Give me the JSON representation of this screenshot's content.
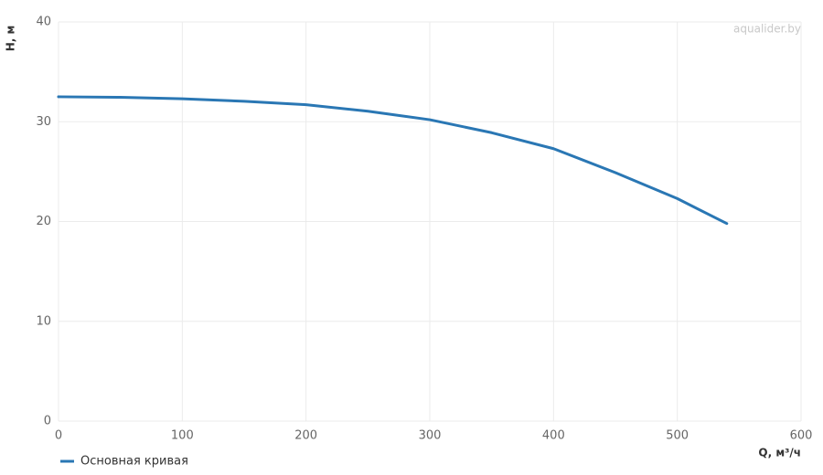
{
  "chart_data": {
    "type": "line",
    "x": [
      0,
      50,
      100,
      150,
      200,
      250,
      300,
      350,
      400,
      450,
      500,
      540
    ],
    "series": [
      {
        "name": "Основная кривая",
        "color": "#2a77b4",
        "values": [
          32.5,
          32.45,
          32.3,
          32.05,
          31.7,
          31.05,
          30.2,
          28.9,
          27.3,
          24.9,
          22.3,
          19.8
        ]
      }
    ],
    "xlim": [
      0,
      600
    ],
    "xticks": [
      0,
      100,
      200,
      300,
      400,
      500,
      600
    ],
    "ylim": [
      0,
      40
    ],
    "yticks": [
      0,
      10,
      20,
      30,
      40
    ],
    "xlabel": "Q, м³/ч",
    "ylabel": "H, м",
    "watermark": "aqualider.by",
    "grid": true,
    "legend": "bottom-left"
  }
}
